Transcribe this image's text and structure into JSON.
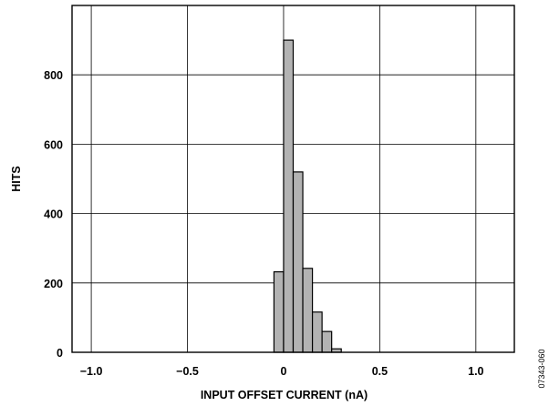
{
  "chart_data": {
    "type": "bar",
    "title": "",
    "xlabel": "INPUT OFFSET CURRENT (nA)",
    "ylabel": "HITS",
    "xlim": [
      -1.1,
      1.2
    ],
    "ylim": [
      0,
      1000
    ],
    "x_ticks": [
      -1.0,
      -0.5,
      0,
      0.5,
      1.0
    ],
    "x_tick_labels": [
      "−1.0",
      "−0.5",
      "0",
      "0.5",
      "1.0"
    ],
    "y_ticks": [
      0,
      200,
      400,
      600,
      800
    ],
    "y_tick_labels": [
      "0",
      "200",
      "400",
      "600",
      "800"
    ],
    "grid": true,
    "bin_width": 0.05,
    "bins": [
      {
        "x0": -0.05,
        "x1": 0.0,
        "value": 232
      },
      {
        "x0": 0.0,
        "x1": 0.05,
        "value": 900
      },
      {
        "x0": 0.05,
        "x1": 0.1,
        "value": 520
      },
      {
        "x0": 0.1,
        "x1": 0.15,
        "value": 242
      },
      {
        "x0": 0.15,
        "x1": 0.2,
        "value": 116
      },
      {
        "x0": 0.2,
        "x1": 0.25,
        "value": 60
      },
      {
        "x0": 0.25,
        "x1": 0.3,
        "value": 10
      }
    ]
  },
  "figure_id": "07343-060"
}
